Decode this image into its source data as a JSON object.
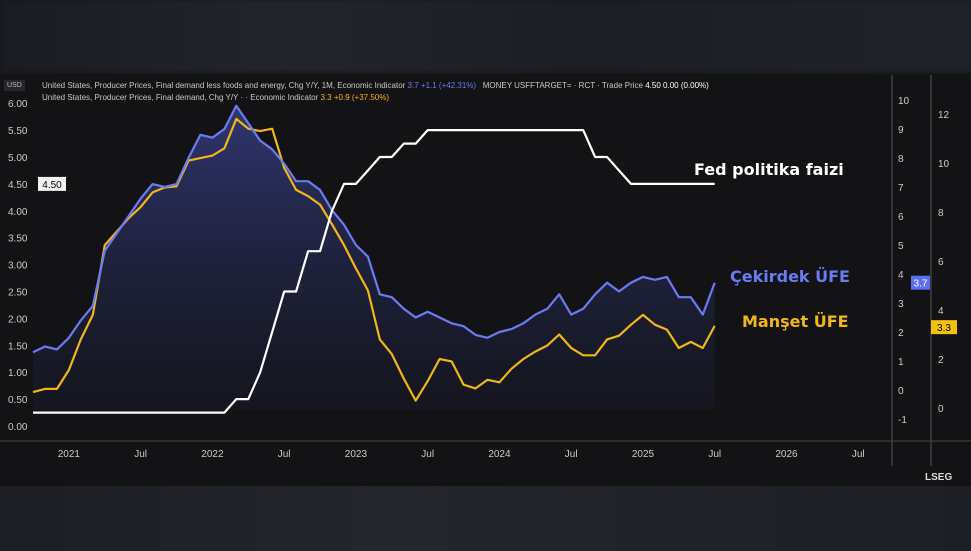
{
  "legend": {
    "core_text": "United States, Producer Prices, Final demand less foods and energy, Chg Y/Y, 1M, Economic Indicator",
    "core_value": "3.7",
    "core_change": "+1.1 (+42.31%)",
    "fed_text": "MONEY USFFTARGET= · RCT · Trade Price",
    "fed_value": "4.50",
    "fed_change": "0.00 (0.00%)",
    "headline_text": "United States, Producer Prices, Final demand, Chg Y/Y · · Economic Indicator",
    "headline_value": "3.3",
    "headline_change": "+0.9 (+37.50%)"
  },
  "currency": "USD",
  "brand": "LSEG",
  "chart_data": {
    "type": "line",
    "start_month": "2020-10",
    "x_ticks": [
      "2021",
      "Jul",
      "2022",
      "Jul",
      "2023",
      "Jul",
      "2024",
      "Jul",
      "2025",
      "Jul",
      "2026",
      "Jul"
    ],
    "axes": {
      "left": {
        "ticks": [
          "6.00",
          "5.50",
          "5.00",
          "4.50",
          "4.00",
          "3.50",
          "3.00",
          "2.50",
          "2.00",
          "1.50",
          "1.00",
          "0.50",
          "0.00"
        ],
        "range": [
          0,
          6
        ],
        "last_label": "4.50"
      },
      "A": {
        "ticks": [
          "10",
          "9",
          "8",
          "7",
          "6",
          "5",
          "4",
          "3",
          "2",
          "1",
          "0",
          "-1"
        ],
        "range": [
          -1,
          10
        ],
        "last_label": "3.7"
      },
      "B": {
        "ticks": [
          "12",
          "10",
          "8",
          "6",
          "4",
          "2",
          "0"
        ],
        "range": [
          0,
          12
        ],
        "last_label": "3.3"
      }
    },
    "series": [
      {
        "name": "Fed politika faizi",
        "axis": "left",
        "color": "#ffffff",
        "values": [
          0.25,
          0.25,
          0.25,
          0.25,
          0.25,
          0.25,
          0.25,
          0.25,
          0.25,
          0.25,
          0.25,
          0.25,
          0.25,
          0.25,
          0.25,
          0.25,
          0.25,
          0.5,
          0.5,
          1.0,
          1.75,
          2.5,
          2.5,
          3.25,
          3.25,
          4.0,
          4.5,
          4.5,
          4.75,
          5.0,
          5.0,
          5.25,
          5.25,
          5.5,
          5.5,
          5.5,
          5.5,
          5.5,
          5.5,
          5.5,
          5.5,
          5.5,
          5.5,
          5.5,
          5.5,
          5.5,
          5.5,
          5.0,
          5.0,
          4.75,
          4.5,
          4.5,
          4.5,
          4.5,
          4.5,
          4.5,
          4.5,
          4.5
        ]
      },
      {
        "name": "Çekirdek ÜFE",
        "axis": "A",
        "color": "#6a7cf2",
        "values": [
          1.3,
          1.5,
          1.4,
          1.8,
          2.4,
          2.9,
          4.8,
          5.4,
          6.0,
          6.6,
          7.1,
          7.0,
          7.1,
          8.0,
          8.8,
          8.7,
          9.0,
          9.8,
          9.2,
          8.6,
          8.3,
          7.8,
          7.2,
          7.2,
          6.9,
          6.2,
          5.7,
          5.0,
          4.6,
          3.3,
          3.2,
          2.8,
          2.5,
          2.7,
          2.5,
          2.3,
          2.2,
          1.9,
          1.8,
          2.0,
          2.1,
          2.3,
          2.6,
          2.8,
          3.3,
          2.6,
          2.8,
          3.3,
          3.7,
          3.4,
          3.7,
          3.9,
          3.8,
          3.9,
          3.2,
          3.2,
          2.6,
          3.7
        ]
      },
      {
        "name": "Manşet ÜFE",
        "axis": "B",
        "color": "#f2b616",
        "values": [
          0.65,
          0.78,
          0.78,
          1.55,
          2.8,
          3.8,
          6.65,
          7.2,
          7.75,
          8.2,
          8.8,
          9.0,
          9.05,
          10.1,
          10.2,
          10.3,
          10.6,
          11.8,
          11.4,
          11.3,
          11.4,
          9.8,
          8.9,
          8.65,
          8.3,
          7.5,
          6.65,
          5.7,
          4.8,
          2.8,
          2.2,
          1.2,
          0.3,
          1.1,
          2.0,
          1.9,
          0.95,
          0.8,
          1.15,
          1.05,
          1.6,
          2.0,
          2.3,
          2.55,
          3.0,
          2.45,
          2.15,
          2.15,
          2.8,
          2.95,
          3.4,
          3.8,
          3.4,
          3.2,
          2.45,
          2.7,
          2.45,
          3.35
        ]
      }
    ],
    "annotations": [
      "Fed politika faizi",
      "Çekirdek ÜFE",
      "Manşet ÜFE"
    ]
  }
}
